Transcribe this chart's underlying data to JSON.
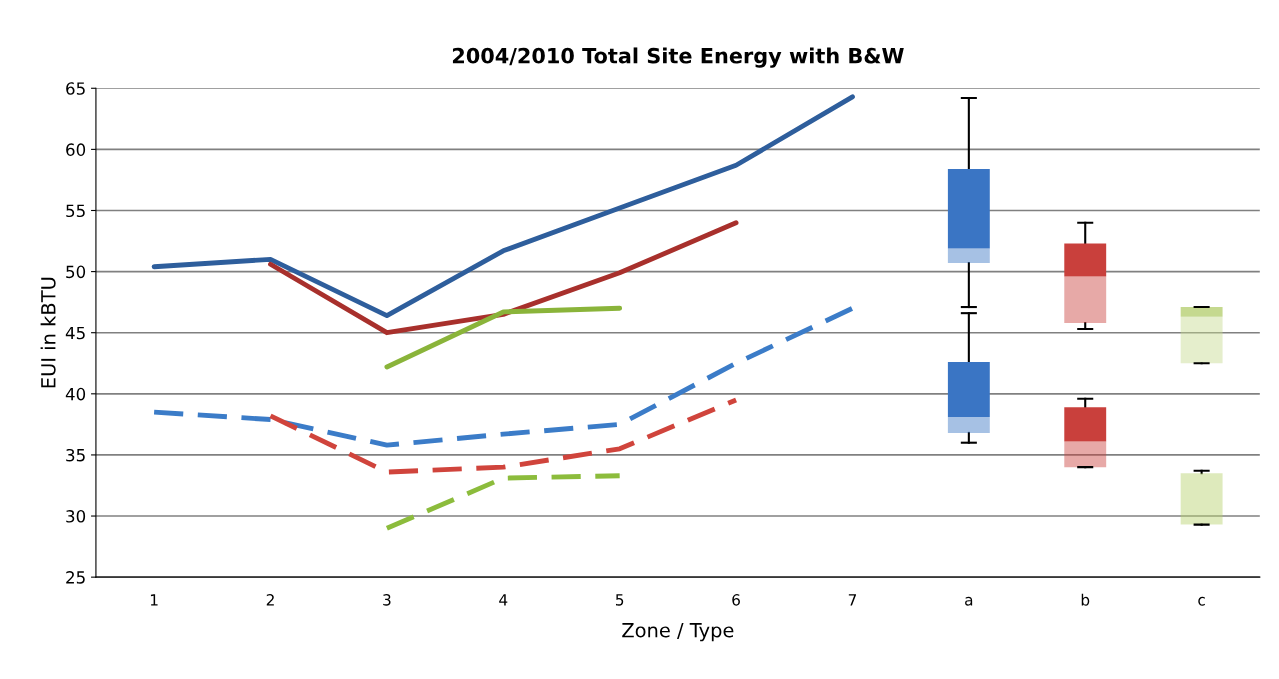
{
  "chart_data": {
    "type": "line",
    "title": "2004/2010 Total Site Energy with B&W",
    "xlabel": "Zone / Type",
    "ylabel": "EUI in kBTU",
    "categories": [
      "1",
      "2",
      "3",
      "4",
      "5",
      "6",
      "7",
      "a",
      "b",
      "c"
    ],
    "ylim": [
      25,
      65
    ],
    "yticks": [
      25,
      30,
      35,
      40,
      45,
      50,
      55,
      60,
      65
    ],
    "grid": "y",
    "legend": false,
    "series": [
      {
        "line_style": "solid",
        "color": "#2e5e9c",
        "values": [
          50.4,
          51.0,
          46.4,
          51.7,
          55.2,
          58.7,
          64.3,
          null,
          null,
          null
        ]
      },
      {
        "line_style": "solid",
        "color": "#a8302c",
        "values": [
          null,
          50.6,
          45.0,
          46.5,
          49.9,
          54.0,
          null,
          null,
          null,
          null
        ]
      },
      {
        "line_style": "solid",
        "color": "#8ab43a",
        "values": [
          null,
          null,
          42.2,
          46.7,
          47.0,
          null,
          null,
          null,
          null,
          null
        ]
      },
      {
        "line_style": "dashed",
        "color": "#3b7cc8",
        "values": [
          38.5,
          37.9,
          35.8,
          36.7,
          37.5,
          42.5,
          47.0,
          null,
          null,
          null
        ]
      },
      {
        "line_style": "dashed",
        "color": "#d0443c",
        "values": [
          null,
          38.2,
          33.6,
          34.0,
          35.5,
          39.5,
          null,
          null,
          null,
          null
        ]
      },
      {
        "line_style": "dashed",
        "color": "#8cbc3c",
        "values": [
          null,
          null,
          29.0,
          33.1,
          33.3,
          null,
          null,
          null,
          null,
          null
        ]
      },
      {
        "type": "box",
        "color": "#3a75c4",
        "boxes": [
          null,
          null,
          null,
          null,
          null,
          null,
          null,
          {
            "low": 47.1,
            "q1": 50.7,
            "median": 51.9,
            "q3": 58.4,
            "high": 64.2
          },
          null,
          null
        ]
      },
      {
        "type": "box",
        "color": "#3a75c4",
        "boxes": [
          null,
          null,
          null,
          null,
          null,
          null,
          null,
          {
            "low": 36.0,
            "q1": 36.8,
            "median": 38.1,
            "q3": 42.6,
            "high": 46.6
          },
          null,
          null
        ]
      },
      {
        "type": "box",
        "color": "#c9403c",
        "boxes": [
          null,
          null,
          null,
          null,
          null,
          null,
          null,
          null,
          {
            "low": 45.3,
            "q1": 45.8,
            "median": 49.6,
            "q3": 52.3,
            "high": 54.0
          },
          null
        ]
      },
      {
        "type": "box",
        "color": "#c9403c",
        "boxes": [
          null,
          null,
          null,
          null,
          null,
          null,
          null,
          null,
          {
            "low": 34.0,
            "q1": 34.0,
            "median": 36.1,
            "q3": 38.9,
            "high": 39.6
          },
          null
        ]
      },
      {
        "type": "box",
        "color": "#c5d98f",
        "boxes": [
          null,
          null,
          null,
          null,
          null,
          null,
          null,
          null,
          null,
          {
            "low": 42.5,
            "q1": 42.5,
            "median": 46.3,
            "q3": 47.1,
            "high": 47.1
          }
        ]
      },
      {
        "type": "box",
        "color": "#b5d06a",
        "boxes": [
          null,
          null,
          null,
          null,
          null,
          null,
          null,
          null,
          null,
          {
            "low": 29.3,
            "q1": 29.3,
            "median": 33.5,
            "q3": 33.5,
            "high": 33.7
          }
        ]
      }
    ]
  }
}
